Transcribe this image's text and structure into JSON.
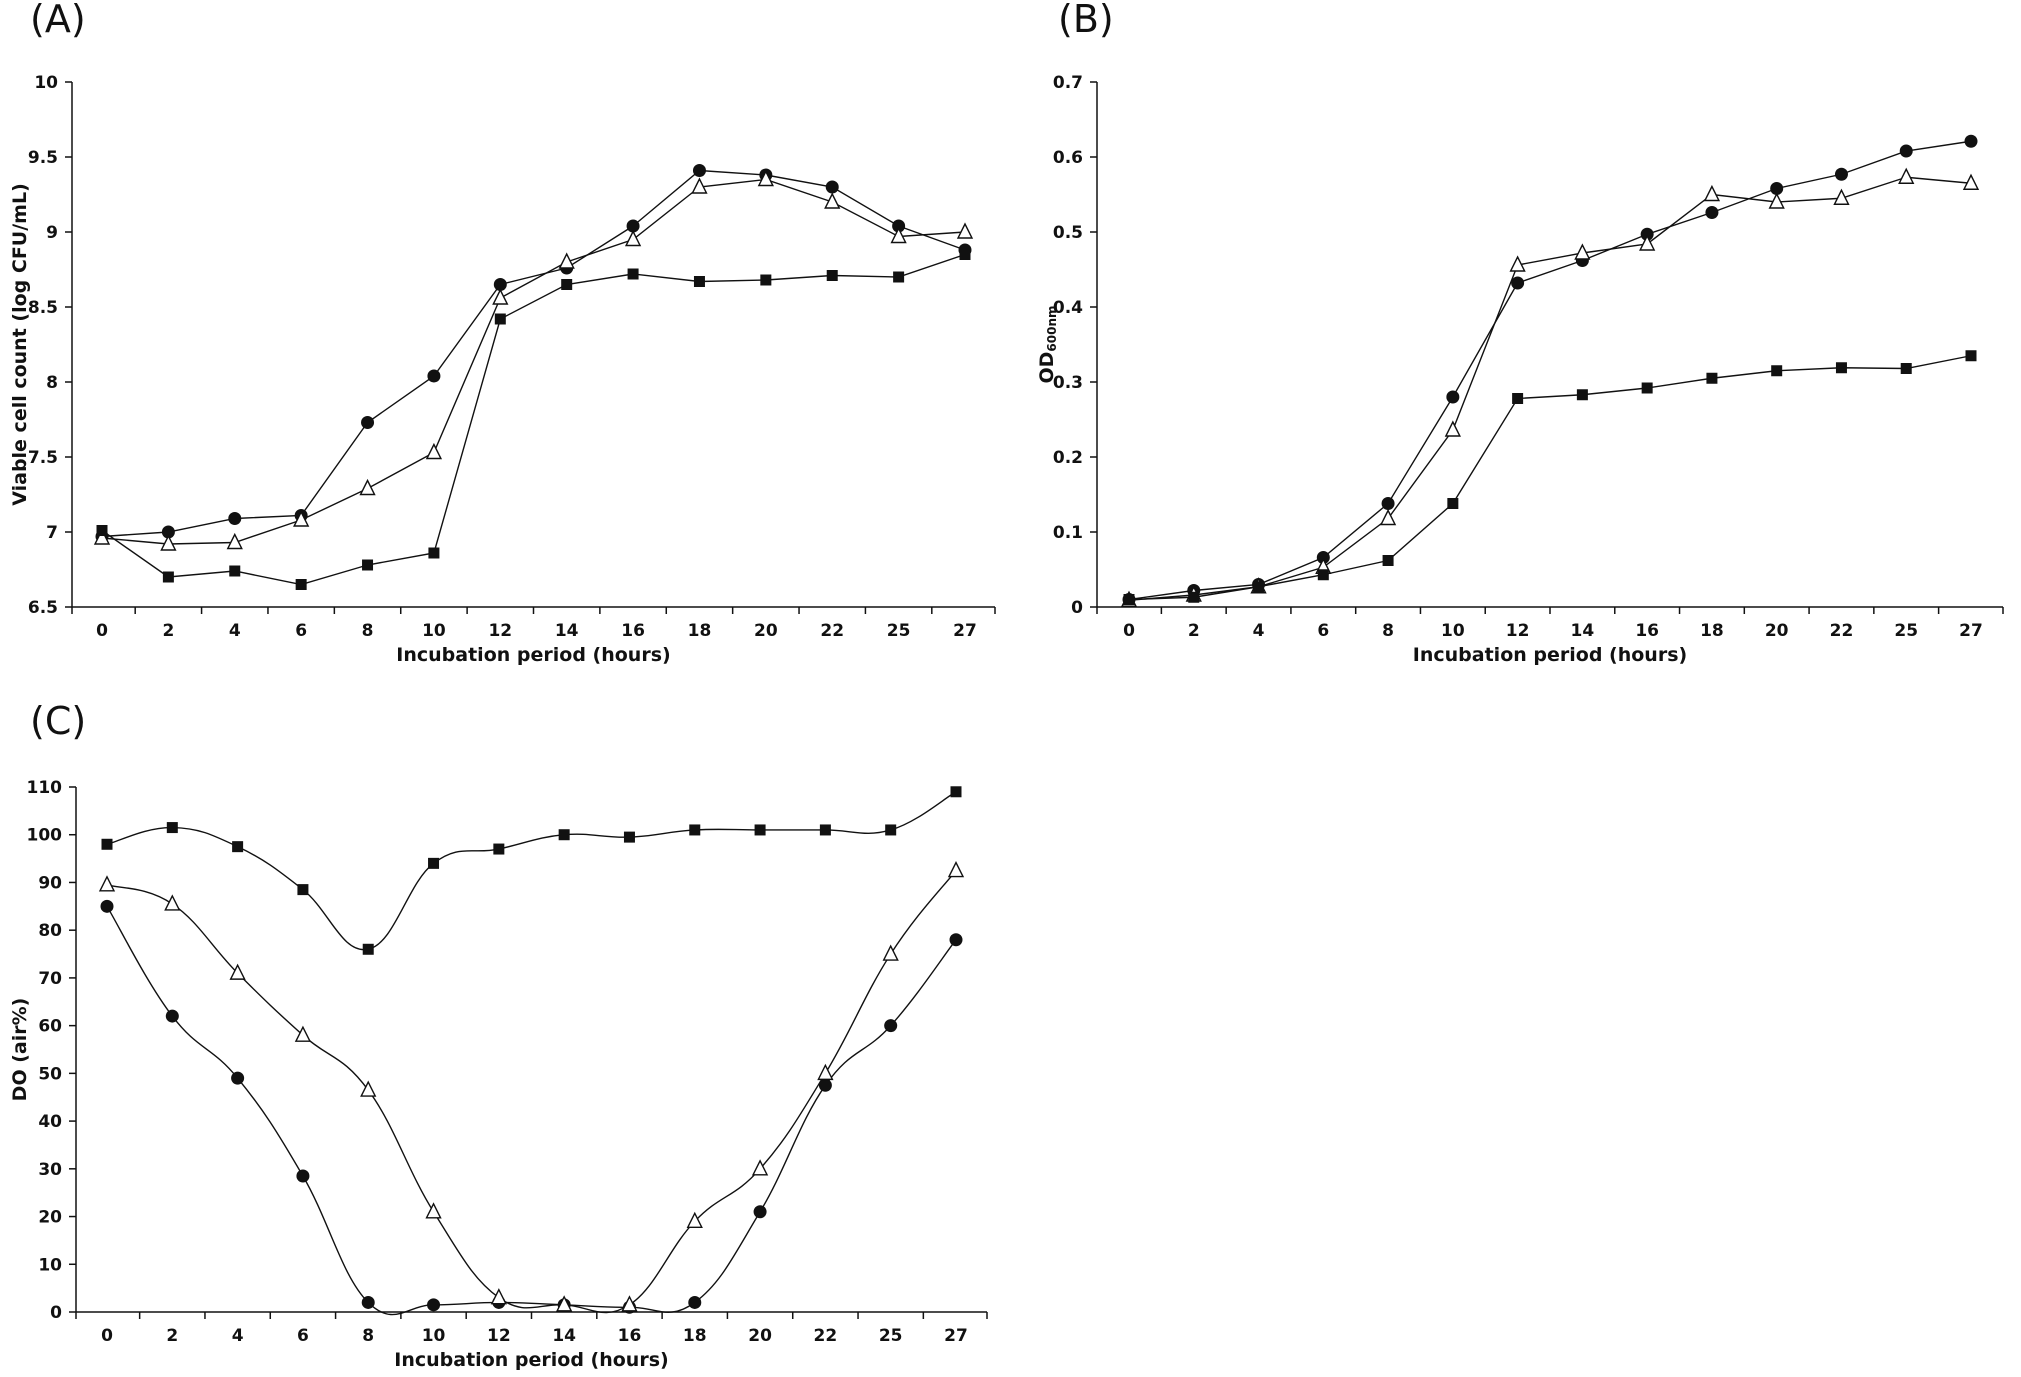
{
  "chart_data": [
    {
      "type": "line",
      "panel_label": "(A)",
      "title": "",
      "xlabel": "Incubation period (hours)",
      "ylabel": "Viable cell count (log CFU/mL)",
      "categories": [
        "0",
        "2",
        "4",
        "6",
        "8",
        "10",
        "12",
        "14",
        "16",
        "18",
        "20",
        "22",
        "25",
        "27"
      ],
      "ylim": [
        6.5,
        10
      ],
      "yticks": [
        6.5,
        7,
        7.5,
        8,
        8.5,
        9,
        9.5,
        10
      ],
      "ytick_labels": [
        "6.5",
        "7",
        "7.5",
        "8",
        "8.5",
        "9",
        "9.5",
        "10"
      ],
      "grid": false,
      "legend": "none",
      "smooth": false,
      "series": [
        {
          "marker": "circle",
          "values": [
            6.97,
            7.0,
            7.09,
            7.11,
            7.73,
            8.04,
            8.65,
            8.76,
            9.04,
            9.41,
            9.38,
            9.3,
            9.04,
            8.88
          ]
        },
        {
          "marker": "open-triangle",
          "values": [
            6.96,
            6.92,
            6.93,
            7.08,
            7.29,
            7.53,
            8.56,
            8.8,
            8.95,
            9.3,
            9.35,
            9.2,
            8.97,
            9.0
          ]
        },
        {
          "marker": "square",
          "values": [
            7.01,
            6.7,
            6.74,
            6.65,
            6.78,
            6.86,
            8.42,
            8.65,
            8.72,
            8.67,
            8.68,
            8.71,
            8.7,
            8.85
          ]
        }
      ]
    },
    {
      "type": "line",
      "panel_label": "(B)",
      "title": "",
      "xlabel": "Incubation period (hours)",
      "ylabel": "OD",
      "ylabel_sub": "600nm",
      "categories": [
        "0",
        "2",
        "4",
        "6",
        "8",
        "10",
        "12",
        "14",
        "16",
        "18",
        "20",
        "22",
        "25",
        "27"
      ],
      "ylim": [
        0,
        0.7
      ],
      "yticks": [
        0,
        0.1,
        0.2,
        0.3,
        0.4,
        0.5,
        0.6,
        0.7
      ],
      "ytick_labels": [
        "0",
        "0.1",
        "0.2",
        "0.3",
        "0.4",
        "0.5",
        "0.6",
        "0.7"
      ],
      "grid": false,
      "legend": "none",
      "smooth": false,
      "series": [
        {
          "marker": "circle",
          "values": [
            0.01,
            0.022,
            0.03,
            0.066,
            0.138,
            0.28,
            0.432,
            0.462,
            0.497,
            0.526,
            0.558,
            0.577,
            0.608,
            0.621
          ]
        },
        {
          "marker": "open-triangle",
          "values": [
            0.009,
            0.016,
            0.027,
            0.053,
            0.118,
            0.236,
            0.456,
            0.472,
            0.484,
            0.55,
            0.54,
            0.545,
            0.573,
            0.565
          ]
        },
        {
          "marker": "square",
          "values": [
            0.01,
            0.013,
            0.027,
            0.043,
            0.062,
            0.138,
            0.278,
            0.283,
            0.292,
            0.305,
            0.315,
            0.319,
            0.318,
            0.335
          ]
        }
      ]
    },
    {
      "type": "line",
      "panel_label": "(C)",
      "title": "",
      "xlabel": "Incubation period (hours)",
      "ylabel": "DO (air%)",
      "categories": [
        "0",
        "2",
        "4",
        "6",
        "8",
        "10",
        "12",
        "14",
        "16",
        "18",
        "20",
        "22",
        "25",
        "27"
      ],
      "ylim": [
        0,
        110
      ],
      "yticks": [
        0,
        10,
        20,
        30,
        40,
        50,
        60,
        70,
        80,
        90,
        100,
        110
      ],
      "ytick_labels": [
        "0",
        "10",
        "20",
        "30",
        "40",
        "50",
        "60",
        "70",
        "80",
        "90",
        "100",
        "110"
      ],
      "grid": false,
      "legend": "none",
      "smooth": true,
      "series": [
        {
          "marker": "circle",
          "values": [
            85,
            62,
            49,
            28.5,
            2,
            1.5,
            2,
            1.5,
            1,
            2,
            21,
            47.5,
            60,
            78
          ]
        },
        {
          "marker": "open-triangle",
          "values": [
            89.5,
            85.5,
            71,
            58,
            46.5,
            21,
            3,
            1.5,
            1.5,
            19,
            30,
            50,
            75,
            92.5
          ]
        },
        {
          "marker": "square",
          "values": [
            98,
            101.5,
            97.5,
            88.5,
            76,
            94,
            97,
            100,
            99.5,
            101,
            101,
            101,
            101,
            109
          ]
        }
      ]
    }
  ]
}
